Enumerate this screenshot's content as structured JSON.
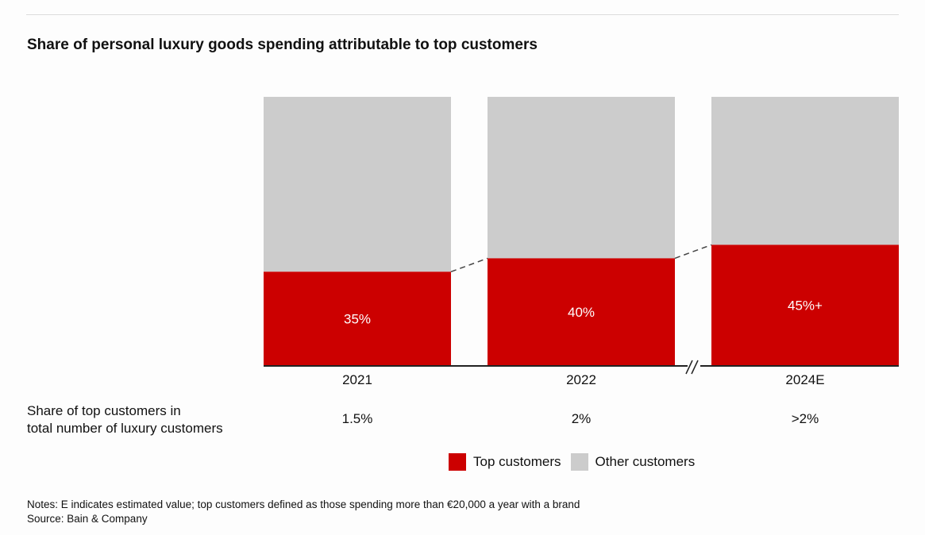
{
  "title": "Share of personal luxury goods spending attributable to top customers",
  "colors": {
    "top": "#cc0000",
    "other": "#cccccc",
    "axis": "#222222"
  },
  "chart_data": {
    "type": "bar",
    "stacked": true,
    "title": "Share of personal luxury goods spending attributable to top customers",
    "categories": [
      "2021",
      "2022",
      "2024E"
    ],
    "series": [
      {
        "name": "Top customers",
        "values": [
          35,
          40,
          45
        ],
        "labels": [
          "35%",
          "40%",
          "45%+"
        ]
      },
      {
        "name": "Other customers",
        "values": [
          65,
          60,
          55
        ]
      }
    ],
    "ylim": [
      0,
      100
    ],
    "axis_break_between": [
      "2022",
      "2024E"
    ],
    "grid": false,
    "legend": "bottom",
    "row": {
      "label_line1": "Share of top customers in",
      "label_line2": "total number of luxury customers",
      "values": [
        "1.5%",
        "2%",
        ">2%"
      ]
    }
  },
  "legend": {
    "top": "Top customers",
    "other": "Other customers"
  },
  "notes": "Notes: E indicates estimated value; top customers defined as those spending more than €20,000 a year with a brand",
  "source": "Source: Bain & Company"
}
